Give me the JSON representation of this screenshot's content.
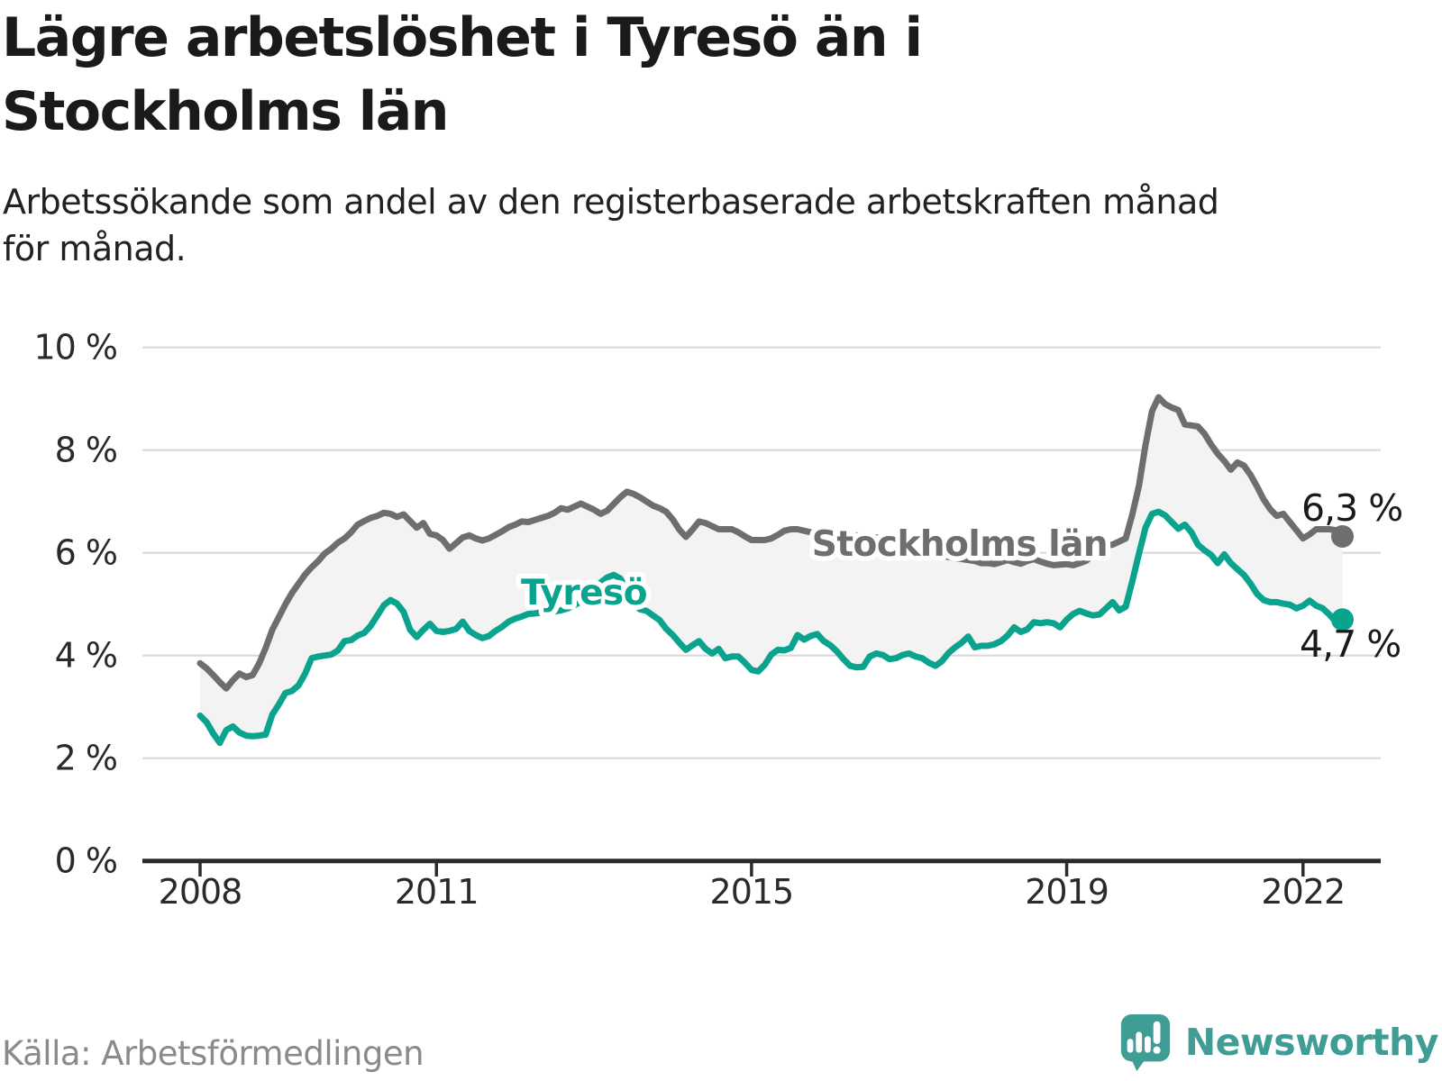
{
  "header": {
    "title": "Lägre arbetslöshet i Tyresö än i Stockholms län",
    "subtitle": "Arbetssökande som andel av den registerbaserade arbetskraften månad för månad."
  },
  "footer": {
    "source": "Källa: Arbetsförmedlingen",
    "brand": "Newsworthy"
  },
  "colors": {
    "stockholm": "#6e6e6e",
    "tyreso": "#0aa48e",
    "fill_between": "#f3f3f3",
    "gridline": "#d8d8d8",
    "axis": "#2b2b2b",
    "brand_teal": "#3f9d96"
  },
  "chart_data": {
    "type": "line",
    "title": "Lägre arbetslöshet i Tyresö än i Stockholms län",
    "ylabel": "",
    "xlabel": "",
    "unit": "%",
    "ylim": [
      0,
      10
    ],
    "grid": true,
    "legend_position": "inline",
    "x_start": "2008",
    "x_end": "2022",
    "points_per_year": 12,
    "y_ticks": [
      {
        "label": "0 %",
        "value": 0
      },
      {
        "label": "2 %",
        "value": 2
      },
      {
        "label": "4 %",
        "value": 4
      },
      {
        "label": "6 %",
        "value": 6
      },
      {
        "label": "8 %",
        "value": 8
      },
      {
        "label": "10 %",
        "value": 10
      }
    ],
    "x_ticks": [
      {
        "label": "2008",
        "month_index": 0
      },
      {
        "label": "2011",
        "month_index": 36
      },
      {
        "label": "2015",
        "month_index": 84
      },
      {
        "label": "2019",
        "month_index": 132
      },
      {
        "label": "2022",
        "month_index": 168
      }
    ],
    "series": [
      {
        "name": "Stockholms län",
        "color": "#6e6e6e",
        "end_label": "6,3 %",
        "end_value": 6.3,
        "values": [
          3.85,
          3.75,
          3.62,
          3.48,
          3.36,
          3.52,
          3.65,
          3.58,
          3.62,
          3.85,
          4.15,
          4.5,
          4.75,
          5.0,
          5.22,
          5.4,
          5.58,
          5.72,
          5.84,
          5.99,
          6.08,
          6.2,
          6.28,
          6.4,
          6.55,
          6.62,
          6.68,
          6.72,
          6.78,
          6.76,
          6.7,
          6.75,
          6.62,
          6.49,
          6.58,
          6.37,
          6.34,
          6.25,
          6.08,
          6.19,
          6.3,
          6.34,
          6.28,
          6.24,
          6.28,
          6.35,
          6.42,
          6.5,
          6.55,
          6.61,
          6.6,
          6.64,
          6.68,
          6.72,
          6.78,
          6.87,
          6.84,
          6.9,
          6.96,
          6.9,
          6.84,
          6.76,
          6.82,
          6.95,
          7.08,
          7.19,
          7.15,
          7.08,
          7.0,
          6.92,
          6.87,
          6.8,
          6.65,
          6.45,
          6.31,
          6.45,
          6.61,
          6.58,
          6.52,
          6.46,
          6.46,
          6.46,
          6.4,
          6.32,
          6.25,
          6.25,
          6.25,
          6.28,
          6.35,
          6.43,
          6.46,
          6.46,
          6.43,
          6.4,
          6.36,
          6.32,
          6.3,
          6.27,
          6.3,
          6.32,
          6.34,
          6.3,
          6.26,
          6.3,
          6.26,
          6.22,
          6.2,
          6.16,
          6.1,
          6.05,
          6.02,
          6.0,
          5.97,
          5.94,
          5.92,
          5.9,
          5.88,
          5.86,
          5.84,
          5.8,
          5.8,
          5.78,
          5.82,
          5.86,
          5.82,
          5.79,
          5.84,
          5.88,
          5.83,
          5.79,
          5.76,
          5.77,
          5.78,
          5.76,
          5.8,
          5.85,
          5.95,
          6.08,
          6.14,
          6.16,
          6.22,
          6.28,
          6.75,
          7.3,
          8.1,
          8.76,
          9.03,
          8.9,
          8.83,
          8.78,
          8.5,
          8.48,
          8.46,
          8.32,
          8.11,
          7.93,
          7.79,
          7.62,
          7.76,
          7.7,
          7.52,
          7.29,
          7.04,
          6.85,
          6.72,
          6.76,
          6.6,
          6.44,
          6.28,
          6.36,
          6.46,
          6.46,
          6.46,
          6.44,
          6.32
        ]
      },
      {
        "name": "Tyresö",
        "color": "#0aa48e",
        "end_label": "4,7 %",
        "end_value": 4.7,
        "values": [
          2.83,
          2.7,
          2.48,
          2.3,
          2.55,
          2.62,
          2.5,
          2.44,
          2.43,
          2.44,
          2.46,
          2.85,
          3.05,
          3.27,
          3.31,
          3.42,
          3.65,
          3.95,
          3.98,
          4.0,
          4.02,
          4.1,
          4.28,
          4.3,
          4.39,
          4.44,
          4.58,
          4.78,
          4.98,
          5.08,
          5.01,
          4.85,
          4.5,
          4.36,
          4.5,
          4.62,
          4.48,
          4.46,
          4.48,
          4.52,
          4.66,
          4.48,
          4.4,
          4.34,
          4.38,
          4.48,
          4.56,
          4.66,
          4.72,
          4.76,
          4.81,
          4.82,
          4.84,
          4.85,
          4.86,
          4.88,
          4.92,
          4.98,
          5.05,
          5.15,
          5.28,
          5.42,
          5.52,
          5.57,
          5.5,
          5.3,
          5.05,
          4.9,
          4.87,
          4.78,
          4.69,
          4.52,
          4.4,
          4.25,
          4.11,
          4.2,
          4.28,
          4.13,
          4.04,
          4.13,
          3.95,
          3.98,
          3.98,
          3.86,
          3.72,
          3.69,
          3.82,
          4.02,
          4.11,
          4.1,
          4.15,
          4.4,
          4.31,
          4.38,
          4.42,
          4.28,
          4.2,
          4.08,
          3.93,
          3.8,
          3.77,
          3.78,
          3.98,
          4.04,
          4.01,
          3.93,
          3.95,
          4.01,
          4.04,
          3.98,
          3.95,
          3.86,
          3.8,
          3.89,
          4.05,
          4.16,
          4.25,
          4.37,
          4.16,
          4.19,
          4.19,
          4.22,
          4.28,
          4.39,
          4.55,
          4.46,
          4.51,
          4.65,
          4.63,
          4.65,
          4.63,
          4.55,
          4.7,
          4.81,
          4.87,
          4.82,
          4.78,
          4.8,
          4.92,
          5.04,
          4.88,
          4.95,
          5.45,
          5.98,
          6.49,
          6.76,
          6.8,
          6.73,
          6.6,
          6.47,
          6.55,
          6.4,
          6.16,
          6.05,
          5.96,
          5.8,
          5.97,
          5.8,
          5.68,
          5.57,
          5.4,
          5.2,
          5.08,
          5.04,
          5.04,
          5.01,
          4.99,
          4.92,
          4.97,
          5.07,
          4.97,
          4.92,
          4.8,
          4.66,
          4.7
        ]
      }
    ]
  }
}
